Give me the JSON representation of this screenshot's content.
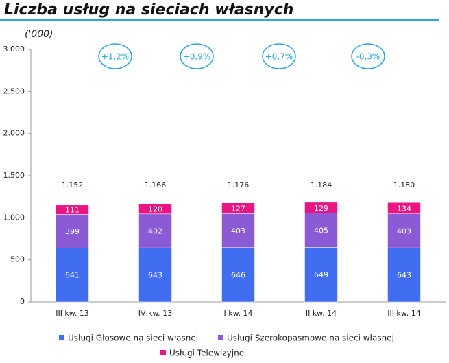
{
  "chart_data": {
    "type": "stacked-bar",
    "title": "Liczba usług na sieciach własnych",
    "unit_label": "('000)",
    "categories": [
      "III kw. 13",
      "IV kw. 13",
      "I kw. 14",
      "II kw. 14",
      "III kw. 14"
    ],
    "series": [
      {
        "name": "Usługi Głosowe na sieci własnej",
        "color": "#416ef0",
        "values": [
          641,
          643,
          646,
          649,
          643
        ]
      },
      {
        "name": "Usługi Szerokopasmowe na sieci własnej",
        "color": "#8b5bd6",
        "values": [
          399,
          402,
          403,
          405,
          403
        ]
      },
      {
        "name": "Usługi Telewizyjne",
        "color": "#ea1582",
        "values": [
          111,
          120,
          127,
          129,
          134
        ]
      }
    ],
    "totals": {
      "values": [
        1152,
        1166,
        1176,
        1184,
        1180
      ],
      "value_labels": [
        "1.152",
        "1.166",
        "1.176",
        "1.184",
        "1.180"
      ]
    },
    "annotations": [
      "+1,2%",
      "+0,9%",
      "+0,7%",
      "-0,3%"
    ],
    "ylim": [
      0,
      3000
    ],
    "yticks": [
      0,
      500,
      {
        "value": 1000,
        "label": "1.000"
      },
      {
        "value": 1500,
        "label": "1.500"
      },
      {
        "value": 2000,
        "label": "2.000"
      },
      {
        "value": 2500,
        "label": "2.500"
      },
      {
        "value": 3000,
        "label": "3.000"
      }
    ]
  }
}
